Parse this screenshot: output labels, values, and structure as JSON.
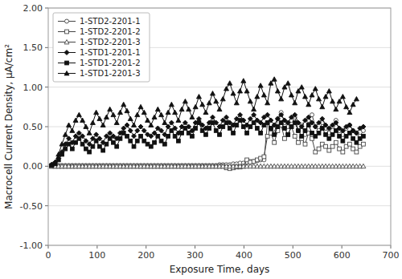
{
  "chart_data": {
    "type": "line",
    "xlabel": "Exposure Time, days",
    "ylabel": "Macrocell Current Density, μA/cm²",
    "xlim": [
      0,
      700
    ],
    "ylim": [
      -1.0,
      2.0
    ],
    "xticks": [
      0,
      100,
      200,
      300,
      400,
      500,
      600,
      700
    ],
    "yticks": [
      {
        "value": -1.0,
        "label": "-1.00"
      },
      {
        "value": -0.5,
        "label": "-0.50"
      },
      {
        "value": 0.0,
        "label": "0.00"
      },
      {
        "value": 0.5,
        "label": "0.50"
      },
      {
        "value": 1.0,
        "label": "1.00"
      },
      {
        "value": 1.5,
        "label": "1.50"
      },
      {
        "value": 2.0,
        "label": "2.00"
      }
    ],
    "grid": true,
    "legend": "upper left",
    "series": [
      {
        "name": "1-STD2-2201-1",
        "color": "#444444",
        "marker": "circle-open",
        "x": [
          7,
          14,
          21,
          28,
          35,
          42,
          49,
          56,
          63,
          70,
          77,
          84,
          91,
          98,
          105,
          112,
          119,
          126,
          133,
          140,
          147,
          154,
          161,
          168,
          175,
          182,
          189,
          196,
          203,
          210,
          217,
          224,
          231,
          238,
          245,
          252,
          259,
          266,
          273,
          280,
          287,
          294,
          301,
          308,
          315,
          322,
          329,
          336,
          343,
          350,
          357,
          364,
          371,
          378,
          385,
          392,
          399,
          406,
          413,
          420,
          427,
          434,
          441,
          448,
          455,
          462,
          469,
          476,
          483,
          490,
          497,
          504,
          511,
          518,
          525,
          532,
          539,
          546,
          553,
          560,
          567,
          574,
          581,
          588,
          595,
          602,
          609,
          616,
          623,
          630,
          637,
          644
        ],
        "values": [
          0.01,
          0.01,
          0.01,
          0.01,
          0.01,
          0.01,
          0.01,
          0.01,
          0.01,
          0.01,
          0.01,
          0.01,
          0.01,
          0.01,
          0.01,
          0.01,
          0.01,
          0.01,
          0.01,
          0.01,
          0.01,
          0.01,
          0.01,
          0.01,
          0.01,
          0.01,
          0.01,
          0.01,
          0.01,
          0.01,
          0.01,
          0.01,
          0.01,
          0.01,
          0.01,
          0.01,
          0.01,
          0.01,
          0.01,
          0.01,
          0.01,
          0.01,
          0.01,
          0.01,
          0.01,
          0.01,
          0.01,
          0.01,
          0.01,
          0.02,
          0.02,
          0.02,
          0.02,
          0.03,
          0.03,
          0.04,
          0.04,
          0.05,
          0.06,
          0.06,
          0.07,
          0.08,
          0.08,
          0.55,
          0.48,
          0.42,
          0.6,
          0.68,
          0.55,
          0.5,
          0.58,
          0.62,
          0.45,
          0.52,
          0.4,
          0.58,
          0.65,
          0.5,
          0.45,
          0.55,
          0.48,
          0.42,
          0.5,
          0.58,
          0.45,
          0.4,
          0.48,
          0.52,
          0.45,
          0.42,
          0.38,
          0.45
        ]
      },
      {
        "name": "1-STD2-2201-2",
        "color": "#444444",
        "marker": "square-open",
        "x": [
          7,
          14,
          21,
          28,
          35,
          42,
          49,
          56,
          63,
          70,
          77,
          84,
          91,
          98,
          105,
          112,
          119,
          126,
          133,
          140,
          147,
          154,
          161,
          168,
          175,
          182,
          189,
          196,
          203,
          210,
          217,
          224,
          231,
          238,
          245,
          252,
          259,
          266,
          273,
          280,
          287,
          294,
          301,
          308,
          315,
          322,
          329,
          336,
          343,
          350,
          357,
          364,
          371,
          378,
          385,
          392,
          399,
          406,
          413,
          420,
          427,
          434,
          441,
          448,
          455,
          462,
          469,
          476,
          483,
          490,
          497,
          504,
          511,
          518,
          525,
          532,
          539,
          546,
          553,
          560,
          567,
          574,
          581,
          588,
          595,
          602,
          609,
          616,
          623,
          630,
          637,
          644
        ],
        "values": [
          0.0,
          0.0,
          0.0,
          0.0,
          0.0,
          0.0,
          0.0,
          0.0,
          0.0,
          0.0,
          0.0,
          0.0,
          0.0,
          0.0,
          0.0,
          0.0,
          0.0,
          0.0,
          0.0,
          0.0,
          0.0,
          0.0,
          0.0,
          0.0,
          0.0,
          0.0,
          0.0,
          0.0,
          0.0,
          0.0,
          0.0,
          0.0,
          0.0,
          0.0,
          0.0,
          0.0,
          0.0,
          0.0,
          0.0,
          0.0,
          0.0,
          0.0,
          0.0,
          0.0,
          0.0,
          0.0,
          0.0,
          0.0,
          0.0,
          0.0,
          0.0,
          -0.02,
          -0.03,
          -0.02,
          -0.01,
          -0.01,
          0.0,
          0.08,
          0.05,
          0.06,
          0.08,
          0.1,
          0.12,
          0.38,
          0.42,
          0.3,
          0.45,
          0.52,
          0.35,
          0.4,
          0.5,
          0.38,
          0.3,
          0.35,
          0.28,
          0.42,
          0.35,
          0.18,
          0.22,
          0.28,
          0.25,
          0.2,
          0.25,
          0.3,
          0.22,
          0.18,
          0.25,
          0.28,
          0.22,
          0.18,
          0.25,
          0.28
        ]
      },
      {
        "name": "1-STD2-2201-3",
        "color": "#444444",
        "marker": "triangle-open",
        "x": [
          7,
          14,
          21,
          28,
          35,
          42,
          49,
          56,
          63,
          70,
          77,
          84,
          91,
          98,
          105,
          112,
          119,
          126,
          133,
          140,
          147,
          154,
          161,
          168,
          175,
          182,
          189,
          196,
          203,
          210,
          217,
          224,
          231,
          238,
          245,
          252,
          259,
          266,
          273,
          280,
          287,
          294,
          301,
          308,
          315,
          322,
          329,
          336,
          343,
          350,
          357,
          364,
          371,
          378,
          385,
          392,
          399,
          406,
          413,
          420,
          427,
          434,
          441,
          448,
          455,
          462,
          469,
          476,
          483,
          490,
          497,
          504,
          511,
          518,
          525,
          532,
          539,
          546,
          553,
          560,
          567,
          574,
          581,
          588,
          595,
          602,
          609,
          616,
          623,
          630,
          637,
          644
        ],
        "values": [
          0.0,
          0.0,
          0.0,
          0.0,
          0.0,
          0.0,
          0.0,
          0.0,
          0.0,
          0.0,
          0.0,
          0.0,
          0.0,
          0.0,
          0.0,
          0.0,
          0.0,
          0.0,
          0.0,
          0.0,
          0.0,
          0.0,
          0.0,
          0.0,
          0.0,
          0.0,
          0.0,
          0.0,
          0.0,
          0.0,
          0.0,
          0.0,
          0.0,
          0.0,
          0.0,
          0.0,
          0.0,
          0.0,
          0.0,
          0.0,
          0.0,
          0.0,
          0.0,
          0.0,
          0.0,
          0.0,
          0.0,
          0.0,
          0.0,
          0.0,
          0.0,
          0.0,
          0.0,
          0.0,
          0.0,
          0.0,
          0.0,
          0.0,
          0.0,
          0.0,
          0.0,
          0.0,
          0.0,
          0.0,
          0.0,
          0.0,
          0.0,
          0.0,
          0.0,
          0.0,
          0.0,
          0.0,
          0.0,
          0.0,
          0.0,
          0.0,
          0.0,
          0.0,
          0.0,
          0.0,
          0.0,
          0.0,
          0.0,
          0.0,
          0.0,
          0.0,
          0.0,
          0.0,
          0.0,
          0.0,
          0.0,
          0.0
        ]
      },
      {
        "name": "1-STD1-2201-1",
        "color": "#111111",
        "marker": "diamond",
        "x": [
          7,
          14,
          21,
          28,
          35,
          42,
          49,
          56,
          63,
          70,
          77,
          84,
          91,
          98,
          105,
          112,
          119,
          126,
          133,
          140,
          147,
          154,
          161,
          168,
          175,
          182,
          189,
          196,
          203,
          210,
          217,
          224,
          231,
          238,
          245,
          252,
          259,
          266,
          273,
          280,
          287,
          294,
          301,
          308,
          315,
          322,
          329,
          336,
          343,
          350,
          357,
          364,
          371,
          378,
          385,
          392,
          399,
          406,
          413,
          420,
          427,
          434,
          441,
          448,
          455,
          462,
          469,
          476,
          483,
          490,
          497,
          504,
          511,
          518,
          525,
          532,
          539,
          546,
          553,
          560,
          567,
          574,
          581,
          588,
          595,
          602,
          609,
          616,
          623,
          630,
          637,
          644
        ],
        "values": [
          0.02,
          0.05,
          0.1,
          0.18,
          0.28,
          0.35,
          0.3,
          0.38,
          0.42,
          0.38,
          0.32,
          0.28,
          0.35,
          0.4,
          0.35,
          0.3,
          0.38,
          0.42,
          0.38,
          0.35,
          0.42,
          0.48,
          0.52,
          0.45,
          0.38,
          0.45,
          0.5,
          0.45,
          0.4,
          0.38,
          0.42,
          0.48,
          0.45,
          0.4,
          0.5,
          0.55,
          0.48,
          0.42,
          0.5,
          0.55,
          0.5,
          0.45,
          0.55,
          0.6,
          0.52,
          0.48,
          0.55,
          0.62,
          0.55,
          0.5,
          0.58,
          0.62,
          0.55,
          0.52,
          0.6,
          0.65,
          0.58,
          0.52,
          0.6,
          0.65,
          0.58,
          0.55,
          0.62,
          0.65,
          0.58,
          0.52,
          0.6,
          0.65,
          0.58,
          0.55,
          0.62,
          0.65,
          0.55,
          0.5,
          0.58,
          0.62,
          0.55,
          0.5,
          0.55,
          0.6,
          0.52,
          0.48,
          0.52,
          0.55,
          0.48,
          0.45,
          0.5,
          0.52,
          0.45,
          0.42,
          0.48,
          0.5
        ]
      },
      {
        "name": "1-STD1-2201-2",
        "color": "#111111",
        "marker": "square",
        "x": [
          7,
          14,
          21,
          28,
          35,
          42,
          49,
          56,
          63,
          70,
          77,
          84,
          91,
          98,
          105,
          112,
          119,
          126,
          133,
          140,
          147,
          154,
          161,
          168,
          175,
          182,
          189,
          196,
          203,
          210,
          217,
          224,
          231,
          238,
          245,
          252,
          259,
          266,
          273,
          280,
          287,
          294,
          301,
          308,
          315,
          322,
          329,
          336,
          343,
          350,
          357,
          364,
          371,
          378,
          385,
          392,
          399,
          406,
          413,
          420,
          427,
          434,
          441,
          448,
          455,
          462,
          469,
          476,
          483,
          490,
          497,
          504,
          511,
          518,
          525,
          532,
          539,
          546,
          553,
          560,
          567,
          574,
          581,
          588,
          595,
          602,
          609,
          616,
          623,
          630,
          637,
          644
        ],
        "values": [
          0.01,
          0.03,
          0.08,
          0.15,
          0.22,
          0.28,
          0.22,
          0.3,
          0.35,
          0.28,
          0.22,
          0.18,
          0.25,
          0.32,
          0.25,
          0.2,
          0.28,
          0.35,
          0.3,
          0.25,
          0.35,
          0.42,
          0.38,
          0.32,
          0.25,
          0.32,
          0.38,
          0.32,
          0.28,
          0.25,
          0.3,
          0.38,
          0.32,
          0.28,
          0.38,
          0.45,
          0.38,
          0.32,
          0.42,
          0.48,
          0.42,
          0.38,
          0.48,
          0.55,
          0.45,
          0.4,
          0.48,
          0.55,
          0.45,
          0.4,
          0.5,
          0.55,
          0.48,
          0.42,
          0.52,
          0.58,
          0.5,
          0.42,
          0.5,
          0.55,
          0.48,
          0.42,
          0.52,
          0.55,
          0.48,
          0.4,
          0.5,
          0.55,
          0.48,
          0.4,
          0.5,
          0.55,
          0.45,
          0.38,
          0.45,
          0.52,
          0.42,
          0.38,
          0.42,
          0.48,
          0.4,
          0.35,
          0.4,
          0.45,
          0.38,
          0.32,
          0.38,
          0.42,
          0.35,
          0.3,
          0.35,
          0.38
        ]
      },
      {
        "name": "1-STD1-2201-3",
        "color": "#111111",
        "marker": "triangle",
        "x": [
          7,
          14,
          21,
          28,
          35,
          42,
          49,
          56,
          63,
          70,
          77,
          84,
          91,
          98,
          105,
          112,
          119,
          126,
          133,
          140,
          147,
          154,
          161,
          168,
          175,
          182,
          189,
          196,
          203,
          210,
          217,
          224,
          231,
          238,
          245,
          252,
          259,
          266,
          273,
          280,
          287,
          294,
          301,
          308,
          315,
          322,
          329,
          336,
          343,
          350,
          357,
          364,
          371,
          378,
          385,
          392,
          399,
          406,
          413,
          420,
          427,
          434,
          441,
          448,
          455,
          462,
          469,
          476,
          483,
          490,
          497,
          504,
          511,
          518,
          525,
          532,
          539,
          546,
          553,
          560,
          567,
          574,
          581,
          588,
          595,
          602,
          609,
          616,
          623,
          630
        ],
        "values": [
          0.02,
          0.05,
          0.15,
          0.28,
          0.4,
          0.52,
          0.45,
          0.58,
          0.65,
          0.58,
          0.5,
          0.42,
          0.55,
          0.68,
          0.6,
          0.52,
          0.62,
          0.72,
          0.65,
          0.55,
          0.68,
          0.78,
          0.7,
          0.6,
          0.52,
          0.65,
          0.75,
          0.68,
          0.58,
          0.52,
          0.62,
          0.72,
          0.65,
          0.55,
          0.68,
          0.78,
          0.68,
          0.58,
          0.72,
          0.82,
          0.72,
          0.62,
          0.75,
          0.88,
          0.78,
          0.68,
          0.8,
          0.92,
          0.82,
          0.72,
          0.85,
          0.98,
          1.05,
          0.92,
          0.8,
          0.95,
          1.08,
          0.95,
          0.82,
          0.72,
          0.88,
          1.02,
          0.9,
          0.8,
          1.05,
          1.1,
          0.95,
          0.85,
          1.0,
          1.05,
          0.9,
          0.8,
          0.95,
          1.0,
          0.88,
          0.78,
          0.9,
          0.98,
          0.85,
          0.75,
          0.88,
          0.95,
          0.82,
          0.72,
          0.82,
          0.88,
          0.75,
          0.68,
          0.78,
          0.85
        ]
      }
    ]
  }
}
